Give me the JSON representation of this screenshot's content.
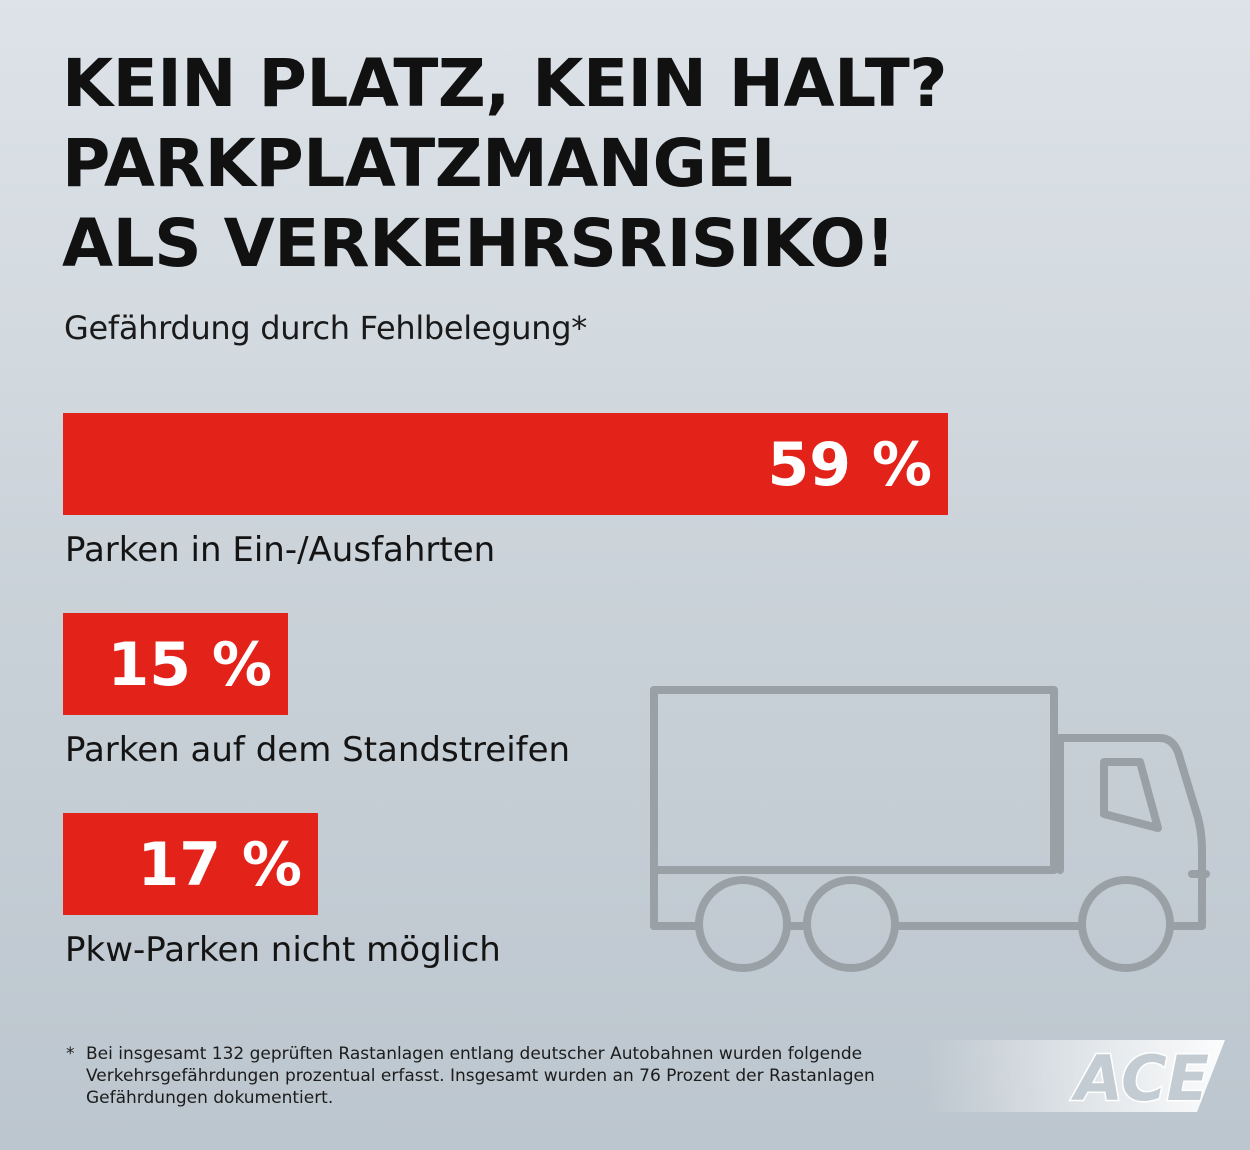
{
  "chart_data": {
    "type": "bar",
    "orientation": "horizontal",
    "title": "KEIN PLATZ, KEIN HALT? PARKPLATZMANGEL ALS VERKEHRSRISIKO!",
    "title_lines": [
      "KEIN PLATZ, KEIN HALT?",
      "PARKPLATZMANGEL",
      "ALS VERKEHRSRISIKO!"
    ],
    "subtitle": "Gefährdung durch Fehlbelegung*",
    "categories": [
      "Parken in Ein-/Ausfahrten",
      "Parken auf dem Standstreifen",
      "Pkw-Parken nicht möglich"
    ],
    "values": [
      59,
      15,
      17
    ],
    "value_labels": [
      "59 %",
      "15 %",
      "17 %"
    ],
    "unit": "%",
    "bar_color": "#e32219",
    "grid": false,
    "legend": "none"
  },
  "footnote": {
    "marker": "*",
    "text": "Bei insgesamt 132 geprüften Rastanlagen entlang deutscher Autobahnen wurden folgende Verkehrsgefährdungen prozentual erfasst. Insgesamt wurden an 76 Prozent der Rastanlagen Gefährdungen dokumentiert."
  },
  "logo": {
    "text": "ACE",
    "color": "#c3ccd3"
  },
  "illustration": {
    "icon": "truck-icon",
    "color": "#9aa1a6"
  }
}
